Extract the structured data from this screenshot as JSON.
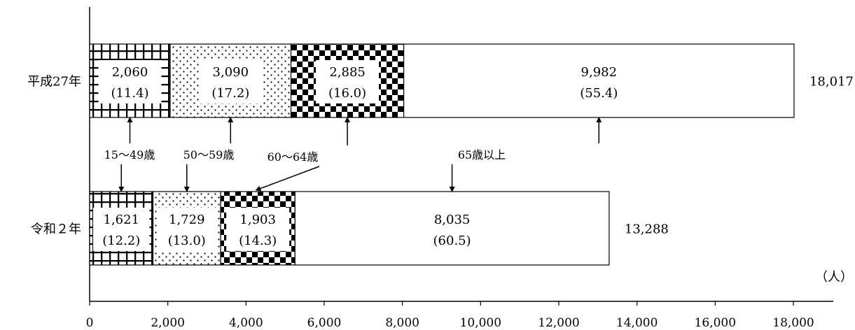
{
  "chart_data": {
    "type": "bar",
    "orientation": "horizontal",
    "stacked": true,
    "unit": "（人）",
    "xlim": [
      0,
      18000
    ],
    "x_ticks": [
      0,
      2000,
      4000,
      6000,
      8000,
      10000,
      12000,
      14000,
      16000,
      18000
    ],
    "x_tick_labels": [
      "0",
      "2,000",
      "4,000",
      "6,000",
      "8,000",
      "10,000",
      "12,000",
      "14,000",
      "16,000",
      "18,000"
    ],
    "categories": [
      "平成27年",
      "令和２年"
    ],
    "series": [
      {
        "name": "15～49歳",
        "pattern": "grid",
        "values": [
          2060,
          1621
        ],
        "value_labels": [
          "2,060",
          "1,621"
        ],
        "percent_labels": [
          "(11.4)",
          "(12.2)"
        ]
      },
      {
        "name": "50～59歳",
        "pattern": "dots",
        "values": [
          3090,
          1729
        ],
        "value_labels": [
          "3,090",
          "1,729"
        ],
        "percent_labels": [
          "(17.2)",
          "(13.0)"
        ]
      },
      {
        "name": "60～64歳",
        "pattern": "checker",
        "values": [
          2885,
          1903
        ],
        "value_labels": [
          "2,885",
          "1,903"
        ],
        "percent_labels": [
          "(16.0)",
          "(14.3)"
        ]
      },
      {
        "name": "65歳以上",
        "pattern": "none",
        "values": [
          9982,
          8035
        ],
        "value_labels": [
          "9,982",
          "8,035"
        ],
        "percent_labels": [
          "(55.4)",
          "(60.5)"
        ]
      }
    ],
    "totals": [
      18017,
      13288
    ],
    "total_labels": [
      "18,017",
      "13,288"
    ]
  }
}
